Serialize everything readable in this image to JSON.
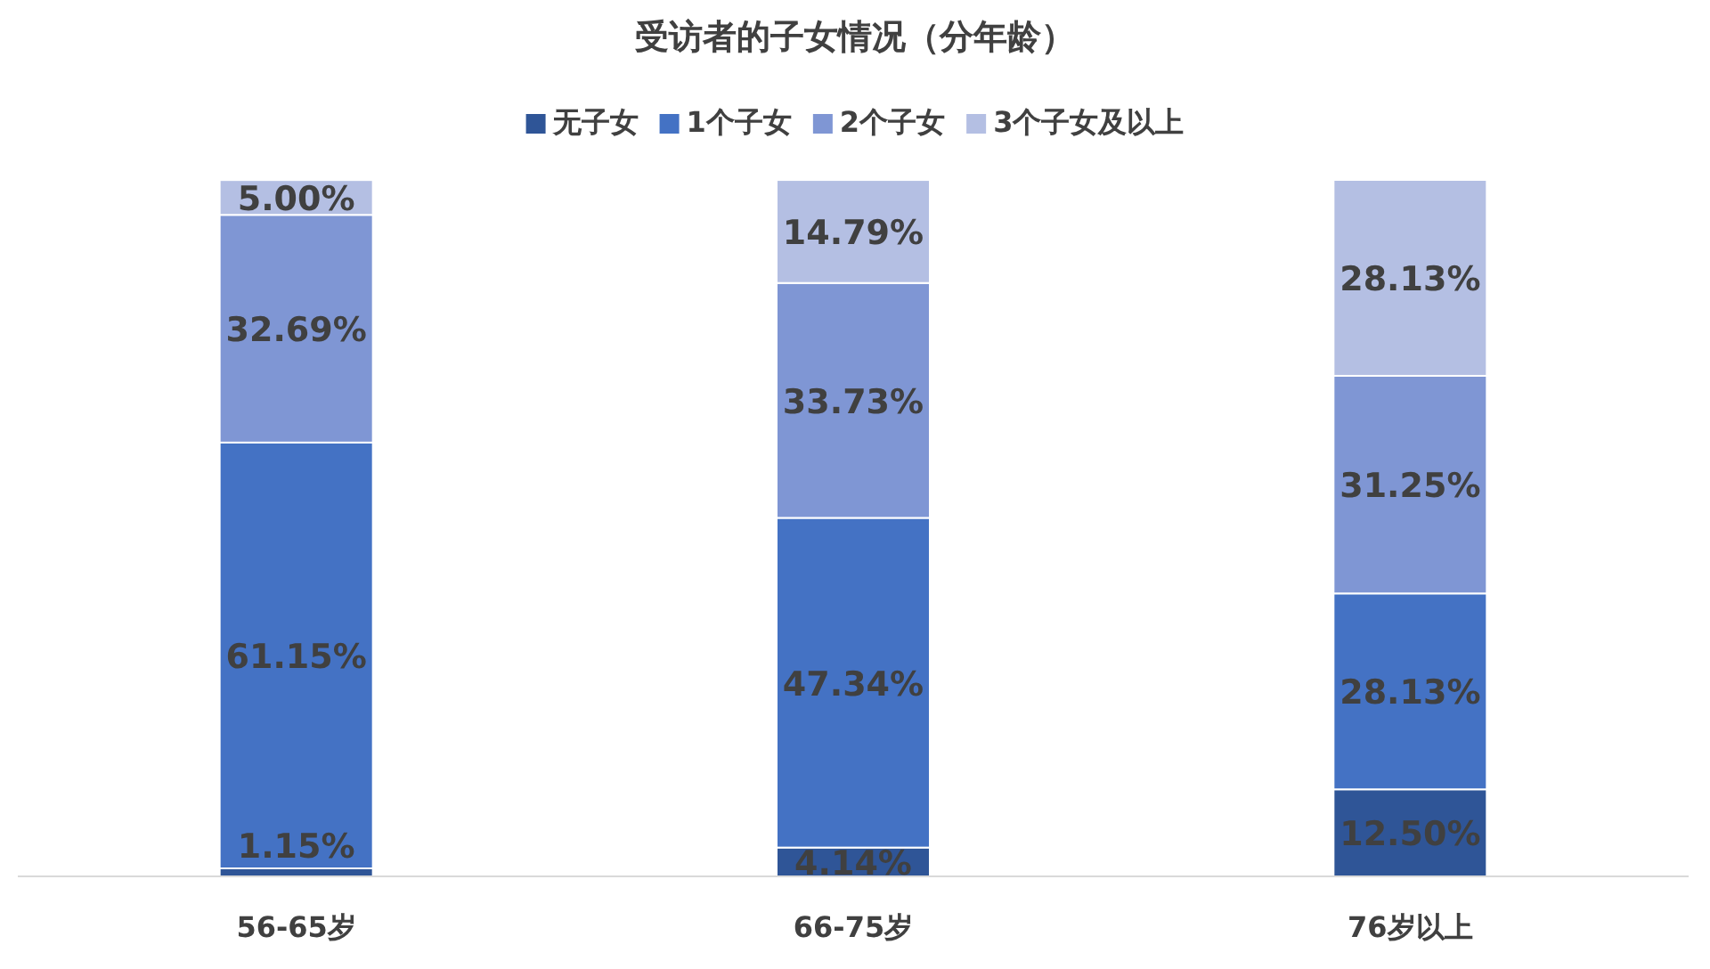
{
  "chart_data": {
    "type": "bar",
    "title": "受访者的子女情况（分年龄）",
    "stacked": true,
    "legend": "top",
    "categories": [
      "56-65岁",
      "66-75岁",
      "76岁以上"
    ],
    "series": [
      {
        "name": "无子女",
        "color": "#2f5597",
        "values": [
          1.15,
          4.14,
          12.5
        ],
        "value_labels": [
          "1.15%",
          "4.14%",
          "12.50%"
        ]
      },
      {
        "name": "1个子女",
        "color": "#4472c4",
        "values": [
          61.15,
          47.34,
          28.13
        ],
        "value_labels": [
          "61.15%",
          "47.34%",
          "28.13%"
        ]
      },
      {
        "name": "2个子女",
        "color": "#7f96d4",
        "values": [
          32.69,
          33.73,
          31.25
        ],
        "value_labels": [
          "32.69%",
          "33.73%",
          "31.25%"
        ]
      },
      {
        "name": "3个子女及以上",
        "color": "#b4bfe3",
        "values": [
          5.0,
          14.79,
          28.13
        ],
        "value_labels": [
          "5.00%",
          "14.79%",
          "28.13%"
        ]
      }
    ]
  }
}
